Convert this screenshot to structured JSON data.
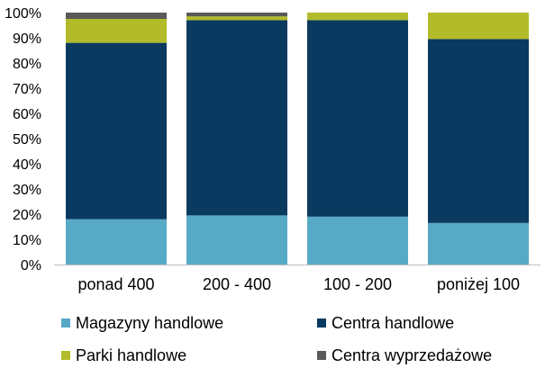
{
  "chart_data": {
    "type": "bar",
    "stacked": true,
    "orientation": "vertical",
    "categories": [
      "ponad 400",
      "200 - 400",
      "100 - 200",
      "poniżej 100"
    ],
    "series": [
      {
        "name": "Magazyny handlowe",
        "color": "#56AAC6",
        "values": [
          18,
          19.5,
          19,
          16.5
        ]
      },
      {
        "name": "Centra handlowe",
        "color": "#0A3A5F",
        "values": [
          70,
          77.5,
          78,
          73
        ]
      },
      {
        "name": "Parki handlowe",
        "color": "#B2BC2A",
        "values": [
          9.5,
          1.5,
          3,
          10.5
        ]
      },
      {
        "name": "Centra wyprzedażowe",
        "color": "#595959",
        "values": [
          2.5,
          1.5,
          0,
          0
        ]
      }
    ],
    "y_ticks": [
      "0%",
      "10%",
      "20%",
      "30%",
      "40%",
      "50%",
      "60%",
      "70%",
      "80%",
      "90%",
      "100%"
    ],
    "ylim": [
      0,
      100
    ],
    "grid": false,
    "legend_position": "bottom"
  }
}
